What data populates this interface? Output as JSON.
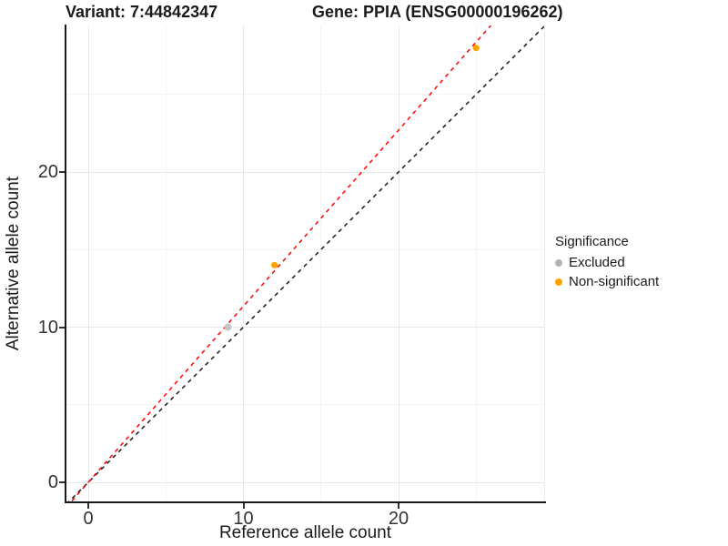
{
  "chart_data": {
    "type": "scatter",
    "titles": {
      "left": "Variant: 7:44842347",
      "right": "Gene: PPIA (ENSG00000196262)"
    },
    "xlabel": "Reference allele count",
    "ylabel": "Alternative allele count",
    "x_ticks": [
      0,
      10,
      20
    ],
    "y_ticks": [
      0,
      10,
      20
    ],
    "x_minor_ticks": [
      5,
      15,
      25
    ],
    "y_minor_ticks": [
      5,
      15,
      25
    ],
    "xlim": [
      -1.4,
      29.4
    ],
    "ylim": [
      -1.3,
      29.4
    ],
    "grid": true,
    "legend_position": "right",
    "points": [
      {
        "x": 9,
        "y": 10,
        "significance": "Excluded",
        "color": "#c6c6c6",
        "r": 4
      },
      {
        "x": 12,
        "y": 14,
        "significance": "Non-significant",
        "color": "#ffa500",
        "r": 3.6
      },
      {
        "x": 25,
        "y": 28,
        "significance": "Non-significant",
        "color": "#ffa500",
        "r": 3.6
      }
    ],
    "lines": [
      {
        "name": "identity-line",
        "slope": 1,
        "intercept": 0,
        "color": "#1a1a1a",
        "style": "dashed"
      },
      {
        "name": "fitted-ratio-line",
        "slope": 1.135,
        "intercept": 0,
        "color": "#ff0000",
        "style": "dashed"
      }
    ],
    "legend": {
      "title": "Significance",
      "items": [
        {
          "label": "Excluded",
          "color": "#b3b3b3"
        },
        {
          "label": "Non-significant",
          "color": "#ffa500"
        }
      ]
    }
  }
}
